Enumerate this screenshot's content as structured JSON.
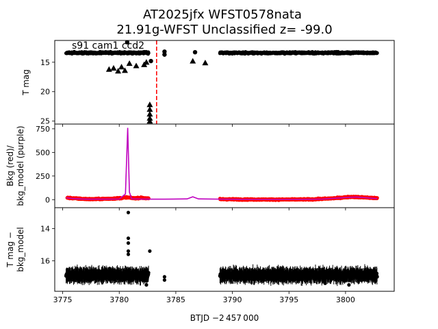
{
  "title": {
    "line1": "AT2025jfx  WFST0578nata",
    "line2": "21.91g-WFST Unclassified z= -99.0"
  },
  "annotation": "s91 cam1 ccd2",
  "xlabel": "BTJD −2 457 000",
  "colors": {
    "points": "#000000",
    "background": "#ff0000",
    "model": "#bf00bf",
    "marker_line": "#ff0000"
  },
  "chart_data": [
    {
      "type": "scatter",
      "panel": "top",
      "ylabel": "T mag",
      "y_inverted": true,
      "xlim": [
        3774.3,
        3804.3
      ],
      "ylim": [
        25.5,
        11.3
      ],
      "xticks": [
        3775,
        3780,
        3785,
        3790,
        3795,
        3800
      ],
      "yticks": [
        15,
        20,
        25
      ],
      "vertical_line_x": 3783.3,
      "series": [
        {
          "marker": "circle",
          "segments": [
            {
              "x0": 3775.3,
              "x1": 3782.6,
              "y": 13.4
            },
            {
              "x0": 3788.9,
              "x1": 3802.8,
              "y": 13.4
            }
          ],
          "points": [
            {
              "x": 3780.7,
              "y": 11.6
            },
            {
              "x": 3782.8,
              "y": 14.8
            },
            {
              "x": 3784.0,
              "y": 13.2
            },
            {
              "x": 3784.0,
              "y": 13.7
            },
            {
              "x": 3786.7,
              "y": 13.3
            }
          ]
        },
        {
          "marker": "triangle",
          "points": [
            {
              "x": 3779.1,
              "y": 16.2
            },
            {
              "x": 3779.5,
              "y": 16.0
            },
            {
              "x": 3779.9,
              "y": 16.5
            },
            {
              "x": 3780.2,
              "y": 15.8
            },
            {
              "x": 3780.5,
              "y": 16.4
            },
            {
              "x": 3780.9,
              "y": 15.2
            },
            {
              "x": 3781.5,
              "y": 15.6
            },
            {
              "x": 3782.2,
              "y": 15.4
            },
            {
              "x": 3782.4,
              "y": 15.0
            },
            {
              "x": 3782.7,
              "y": 22.2
            },
            {
              "x": 3782.7,
              "y": 23.0
            },
            {
              "x": 3782.7,
              "y": 23.8
            },
            {
              "x": 3782.7,
              "y": 24.5
            },
            {
              "x": 3782.7,
              "y": 25.0
            },
            {
              "x": 3786.5,
              "y": 14.8
            },
            {
              "x": 3787.6,
              "y": 15.1
            }
          ]
        }
      ]
    },
    {
      "type": "line",
      "panel": "middle",
      "ylabel_line1": "Bkg (red)/",
      "ylabel_line2": "bkg_model (purple)",
      "xlim": [
        3774.3,
        3804.3
      ],
      "ylim": [
        -85,
        800
      ],
      "yticks": [
        0,
        250,
        500,
        750
      ],
      "series": [
        {
          "name": "Bkg",
          "color": "red",
          "values": [
            [
              3775.4,
              20
            ],
            [
              3776.5,
              10
            ],
            [
              3777.5,
              5
            ],
            [
              3778.5,
              8
            ],
            [
              3779.5,
              12
            ],
            [
              3780.3,
              18
            ],
            [
              3780.6,
              25
            ],
            [
              3781.3,
              15
            ],
            [
              3782.0,
              20
            ],
            [
              3782.6,
              12
            ],
            [
              3788.9,
              5
            ],
            [
              3791.0,
              2
            ],
            [
              3794.0,
              1
            ],
            [
              3797.0,
              3
            ],
            [
              3799.0,
              15
            ],
            [
              3800.5,
              30
            ],
            [
              3801.5,
              25
            ],
            [
              3802.8,
              15
            ]
          ]
        },
        {
          "name": "bkg_model",
          "color": "purple",
          "values": [
            [
              3775.3,
              20
            ],
            [
              3776.0,
              10
            ],
            [
              3777.0,
              5
            ],
            [
              3778.5,
              5
            ],
            [
              3780.0,
              6
            ],
            [
              3780.55,
              60
            ],
            [
              3780.75,
              760
            ],
            [
              3780.9,
              80
            ],
            [
              3781.1,
              8
            ],
            [
              3782.6,
              5
            ],
            [
              3784.0,
              5
            ],
            [
              3786.0,
              8
            ],
            [
              3786.5,
              30
            ],
            [
              3787.0,
              8
            ],
            [
              3788.9,
              5
            ],
            [
              3792.0,
              2
            ],
            [
              3795.0,
              2
            ],
            [
              3798.0,
              6
            ],
            [
              3800.0,
              22
            ],
            [
              3801.0,
              28
            ],
            [
              3802.0,
              18
            ],
            [
              3802.8,
              10
            ]
          ]
        }
      ]
    },
    {
      "type": "scatter",
      "panel": "bottom",
      "ylabel_line1": "T mag −",
      "ylabel_line2": "bkg_model",
      "y_inverted": true,
      "xlim": [
        3774.3,
        3804.3
      ],
      "ylim": [
        17.9,
        12.7
      ],
      "yticks": [
        14,
        16
      ],
      "series": [
        {
          "marker": "circle",
          "segments": [
            {
              "x0": 3775.3,
              "x1": 3782.6,
              "y": 16.9
            },
            {
              "x0": 3788.9,
              "x1": 3802.8,
              "y": 16.9
            }
          ],
          "points": [
            {
              "x": 3780.8,
              "y": 13.0
            },
            {
              "x": 3780.8,
              "y": 14.6
            },
            {
              "x": 3780.8,
              "y": 14.9
            },
            {
              "x": 3780.8,
              "y": 15.4
            },
            {
              "x": 3780.8,
              "y": 15.6
            },
            {
              "x": 3782.7,
              "y": 15.4
            },
            {
              "x": 3784.0,
              "y": 17.0
            },
            {
              "x": 3784.0,
              "y": 17.2
            },
            {
              "x": 3782.4,
              "y": 17.5
            },
            {
              "x": 3798.2,
              "y": 17.4
            },
            {
              "x": 3800.3,
              "y": 17.5
            }
          ]
        }
      ]
    }
  ]
}
